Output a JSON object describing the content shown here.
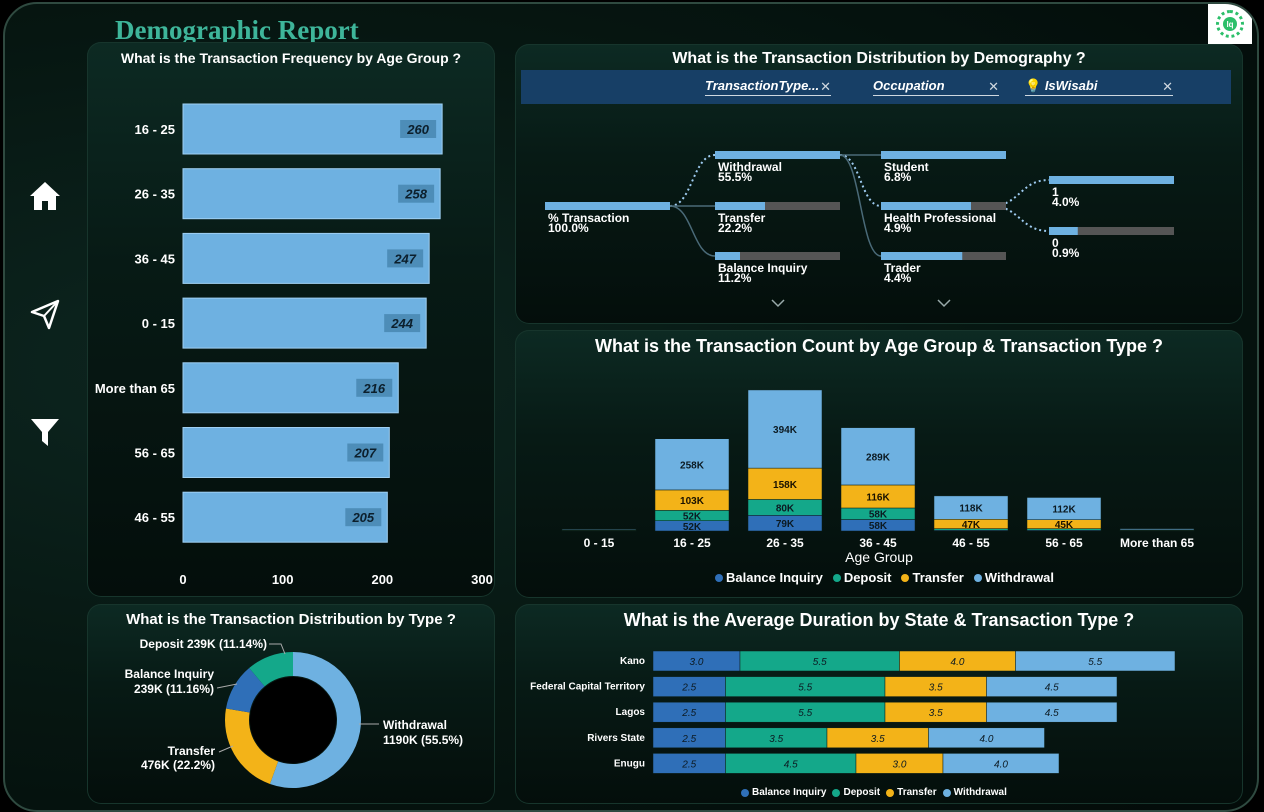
{
  "header": {
    "title": "Demographic Report",
    "logo_text": "lq"
  },
  "nav": {
    "icons": [
      "home-icon",
      "send-icon",
      "filter-icon"
    ]
  },
  "colors": {
    "bar": "#6eb1e1",
    "balance_inquiry": "#2f6fb8",
    "deposit": "#14a88a",
    "transfer": "#f3b318",
    "withdrawal": "#6eb1e1"
  },
  "age_freq": {
    "title": "What is the Transaction Frequency by Age Group ?",
    "chart_data": {
      "type": "bar",
      "orientation": "horizontal",
      "categories": [
        "16 - 25",
        "26 - 35",
        "36 - 45",
        "0 - 15",
        "More than 65",
        "56 - 65",
        "46 - 55"
      ],
      "values": [
        260,
        258,
        247,
        244,
        216,
        207,
        205
      ],
      "xticks": [
        "0",
        "100",
        "200",
        "300"
      ],
      "xlim": [
        0,
        300
      ]
    }
  },
  "decomp": {
    "title": "What is the Transaction Distribution by Demography ?",
    "fields": [
      "TransactionType...",
      "Occupation",
      "IsWisabi"
    ],
    "root": {
      "label": "% Transaction",
      "value": "100.0%"
    },
    "level1": [
      {
        "label": "Withdrawal",
        "value": "55.5%",
        "fill": 1.0
      },
      {
        "label": "Transfer",
        "value": "22.2%",
        "fill": 0.4
      },
      {
        "label": "Balance Inquiry",
        "value": "11.2%",
        "fill": 0.2
      }
    ],
    "level2": [
      {
        "label": "Student",
        "value": "6.8%",
        "fill": 1.0
      },
      {
        "label": "Health Professional",
        "value": "4.9%",
        "fill": 0.72
      },
      {
        "label": "Trader",
        "value": "4.4%",
        "fill": 0.65
      }
    ],
    "level3": [
      {
        "label": "1",
        "value": "4.0%",
        "fill": 1.0
      },
      {
        "label": "0",
        "value": "0.9%",
        "fill": 0.23
      }
    ]
  },
  "age_type": {
    "title": "What is the Transaction Count by Age Group & Transaction Type ?",
    "chart_data": {
      "type": "bar",
      "stacked": true,
      "xlabel": "Age Group",
      "categories": [
        "0 - 15",
        "16 - 25",
        "26 - 35",
        "36 - 45",
        "46 - 55",
        "56 - 65",
        "More than 65"
      ],
      "series": [
        {
          "name": "Balance Inquiry",
          "values": [
            2,
            52,
            79,
            58,
            4,
            4,
            2
          ]
        },
        {
          "name": "Deposit",
          "values": [
            2,
            52,
            80,
            58,
            8,
            8,
            2
          ]
        },
        {
          "name": "Transfer",
          "values": [
            2,
            103,
            158,
            116,
            47,
            45,
            2
          ]
        },
        {
          "name": "Withdrawal",
          "values": [
            4,
            258,
            394,
            289,
            118,
            112,
            6
          ]
        }
      ],
      "labels": [
        [
          "",
          "52K",
          "79K",
          "58K",
          "",
          "",
          ""
        ],
        [
          "",
          "52K",
          "80K",
          "58K",
          "",
          "",
          ""
        ],
        [
          "",
          "103K",
          "158K",
          "116K",
          "47K",
          "45K",
          ""
        ],
        [
          "",
          "258K",
          "394K",
          "289K",
          "118K",
          "112K",
          ""
        ]
      ],
      "ylim": [
        0,
        720
      ],
      "legend": [
        "Balance Inquiry",
        "Deposit",
        "Transfer",
        "Withdrawal"
      ]
    }
  },
  "type_dist": {
    "title": "What is the Transaction Distribution by Type ?",
    "chart_data": {
      "type": "pie",
      "donut": true,
      "categories": [
        "Withdrawal",
        "Transfer",
        "Balance Inquiry",
        "Deposit"
      ],
      "values": [
        1190,
        476,
        239,
        239
      ],
      "labels": [
        [
          "Withdrawal",
          "1190K (55.5%)"
        ],
        [
          "Transfer",
          "476K (22.2%)"
        ],
        [
          "Balance Inquiry",
          "239K (11.16%)"
        ],
        [
          "Deposit 239K (11.14%)"
        ]
      ]
    }
  },
  "duration": {
    "title": "What is the Average Duration by State & Transaction Type ?",
    "chart_data": {
      "type": "bar",
      "orientation": "horizontal",
      "stacked": true,
      "categories": [
        "Kano",
        "Federal Capital Territory",
        "Lagos",
        "Rivers State",
        "Enugu"
      ],
      "series": [
        {
          "name": "Balance Inquiry",
          "values": [
            3.0,
            2.5,
            2.5,
            2.5,
            2.5
          ]
        },
        {
          "name": "Deposit",
          "values": [
            5.5,
            5.5,
            5.5,
            3.5,
            4.5
          ]
        },
        {
          "name": "Transfer",
          "values": [
            4.0,
            3.5,
            3.5,
            3.5,
            3.0
          ]
        },
        {
          "name": "Withdrawal",
          "values": [
            5.5,
            4.5,
            4.5,
            4.0,
            4.0
          ]
        }
      ],
      "labels": [
        [
          "3.0",
          "2.5",
          "2.5",
          "2.5",
          "2.5"
        ],
        [
          "5.5",
          "5.5",
          "5.5",
          "3.5",
          "4.5"
        ],
        [
          "4.0",
          "3.5",
          "3.5",
          "3.5",
          "3.0"
        ],
        [
          "5.5",
          "4.5",
          "4.5",
          "4.0",
          "4.0"
        ]
      ],
      "legend": [
        "Balance Inquiry",
        "Deposit",
        "Transfer",
        "Withdrawal"
      ]
    }
  }
}
